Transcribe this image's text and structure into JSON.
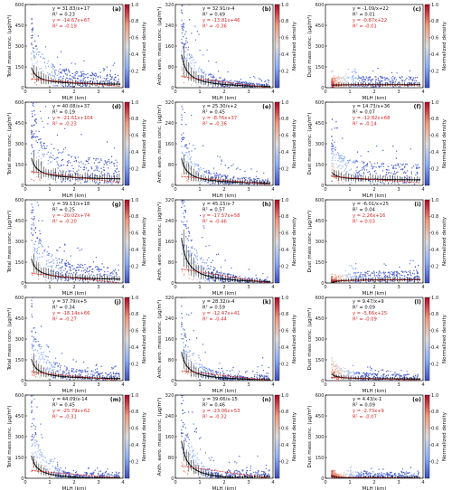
{
  "figure": {
    "colorbar_label": "Normalized density",
    "colorbar_ticks": [
      "0.2",
      "0.4",
      "0.6",
      "0.8",
      "1.0"
    ],
    "colorbar_colors": [
      "#3b4cc0",
      "#8db0fe",
      "#dddddd",
      "#f49a7b",
      "#b40426"
    ],
    "xlabel": "MLH (km)",
    "ylabels": [
      "Total mass conc. (μg/m³)",
      "Anth. aero. mass conc. (μg/m³)",
      "Dust mass conc. (μg/m³)"
    ],
    "black_color": "#111111",
    "red_color": "#d62728"
  },
  "chart_data": [
    {
      "type": "scatter",
      "panel": "(a)",
      "xlim": [
        0,
        4
      ],
      "ylim": [
        0,
        600
      ],
      "xticks": [
        "0",
        "1",
        "2",
        "3",
        "4"
      ],
      "yticks": [
        "0",
        "150",
        "300",
        "450",
        "600"
      ],
      "fit_black": {
        "a": 31.83,
        "b": 17,
        "text": "y = 31.83/x+17",
        "r2": "R² = 0.23"
      },
      "fit_red": {
        "a": -14.67,
        "b": 67,
        "text": "y = -14.67x+67",
        "r2": "R² = -0.19"
      }
    },
    {
      "type": "scatter",
      "panel": "(b)",
      "xlim": [
        0,
        4
      ],
      "ylim": [
        0,
        320
      ],
      "xticks": [
        "0",
        "1",
        "2",
        "3",
        "4"
      ],
      "yticks": [
        "0",
        "80",
        "160",
        "240",
        "320"
      ],
      "fit_black": {
        "a": 32.91,
        "b": -4,
        "text": "y = 32.91/x-4",
        "r2": "R² = 0.49"
      },
      "fit_red": {
        "a": -13.81,
        "b": 46,
        "text": "y = -13.81x+46",
        "r2": "R² = -0.36"
      }
    },
    {
      "type": "scatter",
      "panel": "(c)",
      "xlim": [
        0,
        4
      ],
      "ylim": [
        0,
        600
      ],
      "xticks": [
        "0",
        "1",
        "2",
        "3",
        "4"
      ],
      "yticks": [
        "0",
        "150",
        "300",
        "450",
        "600"
      ],
      "fit_black": {
        "a": -1.09,
        "b": 22,
        "text": "y = -1.09/x+22",
        "r2": "R² = 0.01"
      },
      "fit_red": {
        "a": -0.87,
        "b": 22,
        "text": "y = -0.87x+22",
        "r2": "R² = -0.01"
      }
    },
    {
      "type": "scatter",
      "panel": "(d)",
      "xlim": [
        0,
        4
      ],
      "ylim": [
        0,
        600
      ],
      "xticks": [
        "0",
        "1",
        "2",
        "3",
        "4"
      ],
      "yticks": [
        "0",
        "150",
        "300",
        "450",
        "600"
      ],
      "fit_black": {
        "a": 40.08,
        "b": 37,
        "text": "y = 40.08/x+37",
        "r2": "R² = 0.19"
      },
      "fit_red": {
        "a": -21.61,
        "b": 104,
        "text": "y = -21.61x+104",
        "r2": "R² = -0.23"
      }
    },
    {
      "type": "scatter",
      "panel": "(e)",
      "xlim": [
        0,
        4
      ],
      "ylim": [
        0,
        320
      ],
      "xticks": [
        "0",
        "1",
        "2",
        "3",
        "4"
      ],
      "yticks": [
        "0",
        "80",
        "160",
        "240",
        "320"
      ],
      "fit_black": {
        "a": 25.3,
        "b": 2,
        "text": "y = 25.30/x+2",
        "r2": "R² = 0.45"
      },
      "fit_red": {
        "a": -8.76,
        "b": 37,
        "text": "y = -8.76x+37",
        "r2": "R² = -0.36"
      }
    },
    {
      "type": "scatter",
      "panel": "(f)",
      "xlim": [
        0,
        4
      ],
      "ylim": [
        0,
        600
      ],
      "xticks": [
        "0",
        "1",
        "2",
        "3",
        "4"
      ],
      "yticks": [
        "0",
        "150",
        "300",
        "450",
        "600"
      ],
      "fit_black": {
        "a": 14.73,
        "b": 36,
        "text": "y = 14.73/x+36",
        "r2": "R² = 0.07"
      },
      "fit_red": {
        "a": -12.82,
        "b": 68,
        "text": "y = -12.82x+68",
        "r2": "R² = -0.14"
      }
    },
    {
      "type": "scatter",
      "panel": "(g)",
      "xlim": [
        0,
        4
      ],
      "ylim": [
        0,
        600
      ],
      "xticks": [
        "0",
        "1",
        "2",
        "3",
        "4"
      ],
      "yticks": [
        "0",
        "150",
        "300",
        "450",
        "600"
      ],
      "fit_black": {
        "a": 39.13,
        "b": 18,
        "text": "y = 39.13/x+18",
        "r2": "R² = 0.25"
      },
      "fit_red": {
        "a": -20.02,
        "b": 74,
        "text": "y = -20.02x+74",
        "r2": "R² = -0.20"
      }
    },
    {
      "type": "scatter",
      "panel": "(h)",
      "xlim": [
        0,
        4
      ],
      "ylim": [
        0,
        320
      ],
      "xticks": [
        "0",
        "1",
        "2",
        "3",
        "4"
      ],
      "yticks": [
        "0",
        "80",
        "160",
        "240",
        "320"
      ],
      "fit_black": {
        "a": 45.15,
        "b": -7,
        "text": "y = 45.15/x-7",
        "r2": "R² = 0.57"
      },
      "fit_red": {
        "a": -17.57,
        "b": 58,
        "text": "y = -17.57x+58",
        "r2": "R² = -0.46"
      }
    },
    {
      "type": "scatter",
      "panel": "(i)",
      "xlim": [
        0,
        4
      ],
      "ylim": [
        0,
        600
      ],
      "xticks": [
        "0",
        "1",
        "2",
        "3",
        "4"
      ],
      "yticks": [
        "0",
        "150",
        "300",
        "450",
        "600"
      ],
      "fit_black": {
        "a": -6.01,
        "b": 25,
        "text": "y = -6.01/x+25",
        "r2": "R² = 0.04"
      },
      "fit_red": {
        "a": 2.26,
        "b": 16,
        "text": "y = 2.26x+16",
        "r2": "R² = 0.03"
      }
    },
    {
      "type": "scatter",
      "panel": "(j)",
      "xlim": [
        0,
        4
      ],
      "ylim": [
        0,
        600
      ],
      "xticks": [
        "0",
        "1",
        "2",
        "3",
        "4"
      ],
      "yticks": [
        "0",
        "150",
        "300",
        "450",
        "600"
      ],
      "fit_black": {
        "a": 37.79,
        "b": 5,
        "text": "y = 37.79/x+5",
        "r2": "R² = 0.34"
      },
      "fit_red": {
        "a": -18.14,
        "b": 66,
        "text": "y = -18.14x+66",
        "r2": "R² = -0.27"
      }
    },
    {
      "type": "scatter",
      "panel": "(k)",
      "xlim": [
        0,
        4
      ],
      "ylim": [
        0,
        320
      ],
      "xticks": [
        "0",
        "1",
        "2",
        "3",
        "4"
      ],
      "yticks": [
        "0",
        "80",
        "160",
        "240",
        "320"
      ],
      "fit_black": {
        "a": 28.32,
        "b": -4,
        "text": "y = 28.32/x-4",
        "r2": "R² = 0.59"
      },
      "fit_red": {
        "a": -12.47,
        "b": 41,
        "text": "y = -12.47x+41",
        "r2": "R² = -0.44"
      }
    },
    {
      "type": "scatter",
      "panel": "(l)",
      "xlim": [
        0,
        4
      ],
      "ylim": [
        0,
        600
      ],
      "xticks": [
        "0",
        "1",
        "2",
        "3",
        "4"
      ],
      "yticks": [
        "0",
        "150",
        "300",
        "450",
        "600"
      ],
      "fit_black": {
        "a": 9.47,
        "b": 9,
        "text": "y = 9.47/x+9",
        "r2": "R² = 0.09"
      },
      "fit_red": {
        "a": -5.66,
        "b": 25,
        "text": "y = -5.66x+25",
        "r2": "R² = -0.09"
      }
    },
    {
      "type": "scatter",
      "panel": "(m)",
      "xlim": [
        0,
        4
      ],
      "ylim": [
        0,
        600
      ],
      "xticks": [
        "0",
        "1",
        "2",
        "3",
        "4"
      ],
      "yticks": [
        "0",
        "150",
        "300",
        "450",
        "600"
      ],
      "fit_black": {
        "a": 44.09,
        "b": -14,
        "text": "y = 44.09/x-14",
        "r2": "R² = 0.45"
      },
      "fit_red": {
        "a": -25.79,
        "b": 62,
        "text": "y = -25.79x+62",
        "r2": "R² = -0.31"
      }
    },
    {
      "type": "scatter",
      "panel": "(n)",
      "xlim": [
        0,
        4
      ],
      "ylim": [
        0,
        320
      ],
      "xticks": [
        "0",
        "1",
        "2",
        "3",
        "4"
      ],
      "yticks": [
        "0",
        "80",
        "160",
        "240",
        "320"
      ],
      "fit_black": {
        "a": 39.66,
        "b": -15,
        "text": "y = 39.66/x-15",
        "r2": "R² = 0.46"
      },
      "fit_red": {
        "a": -23.06,
        "b": 53,
        "text": "y = -23.06x+53",
        "r2": "R² = -0.32"
      }
    },
    {
      "type": "scatter",
      "panel": "(o)",
      "xlim": [
        0,
        4
      ],
      "ylim": [
        0,
        600
      ],
      "xticks": [
        "0",
        "1",
        "2",
        "3",
        "4"
      ],
      "yticks": [
        "0",
        "150",
        "300",
        "450",
        "600"
      ],
      "fit_black": {
        "a": 4.43,
        "b": -1,
        "text": "y = 4.43/x-1",
        "r2": "R² = 0.09"
      },
      "fit_red": {
        "a": -2.73,
        "b": 9,
        "text": "y = -2.73x+9",
        "r2": "R² = -0.07"
      }
    }
  ]
}
